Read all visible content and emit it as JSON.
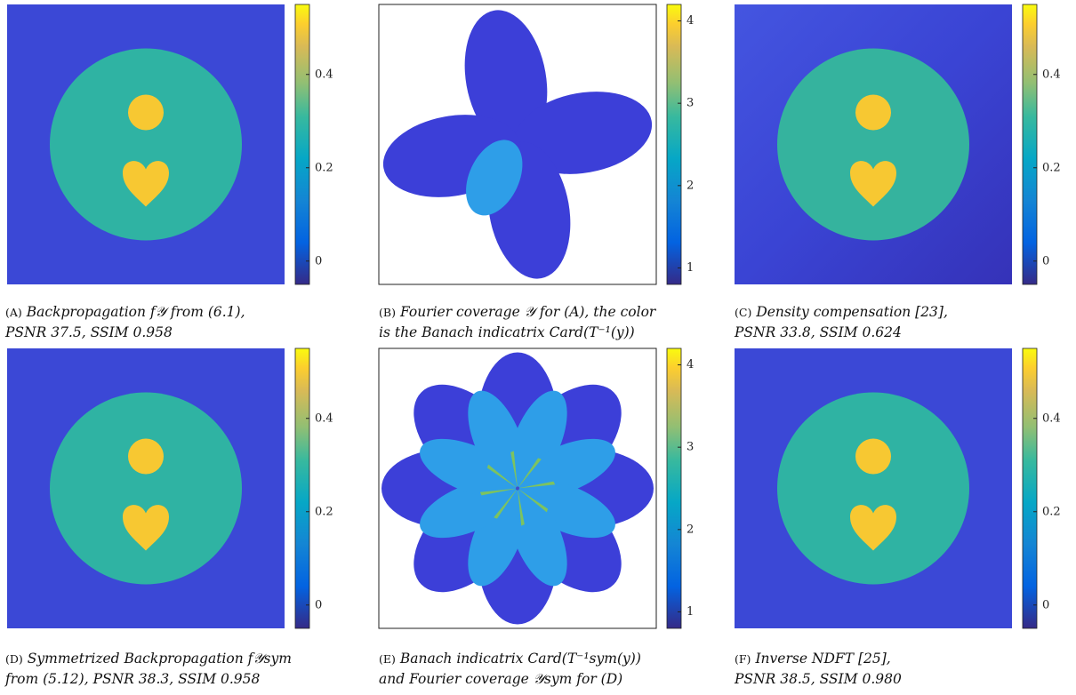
{
  "panels": [
    {
      "label": "(A)",
      "lines": [
        "Backpropagation f𝒴 from (6.1),",
        "PSNR 37.5, SSIM 0.958"
      ],
      "kind": "image",
      "colorbar_ticks": [
        0,
        0.2,
        0.4
      ]
    },
    {
      "label": "(B)",
      "lines": [
        "Fourier coverage 𝒴 for (A), the color",
        "is the Banach indicatrix Card(T⁻¹(y))"
      ],
      "kind": "coverage4",
      "colorbar_ticks": [
        1,
        2,
        3,
        4
      ]
    },
    {
      "label": "(C)",
      "lines": [
        "Density compensation [23],",
        "PSNR 33.8, SSIM 0.624"
      ],
      "kind": "image-noisy",
      "colorbar_ticks": [
        0,
        0.2,
        0.4
      ]
    },
    {
      "label": "(D)",
      "lines": [
        "Symmetrized Backpropagation f𝒴sym",
        "from (5.12), PSNR 38.3, SSIM 0.958"
      ],
      "kind": "image",
      "colorbar_ticks": [
        0,
        0.2,
        0.4
      ]
    },
    {
      "label": "(E)",
      "lines": [
        "Banach indicatrix Card(T⁻¹sym(y))",
        "and Fourier coverage 𝒴sym for (D)"
      ],
      "kind": "coverage8",
      "colorbar_ticks": [
        1,
        2,
        3,
        4
      ]
    },
    {
      "label": "(F)",
      "lines": [
        "Inverse NDFT [25],",
        "PSNR 38.5, SSIM 0.980"
      ],
      "kind": "image",
      "colorbar_ticks": [
        0,
        0.2,
        0.4
      ]
    }
  ]
}
